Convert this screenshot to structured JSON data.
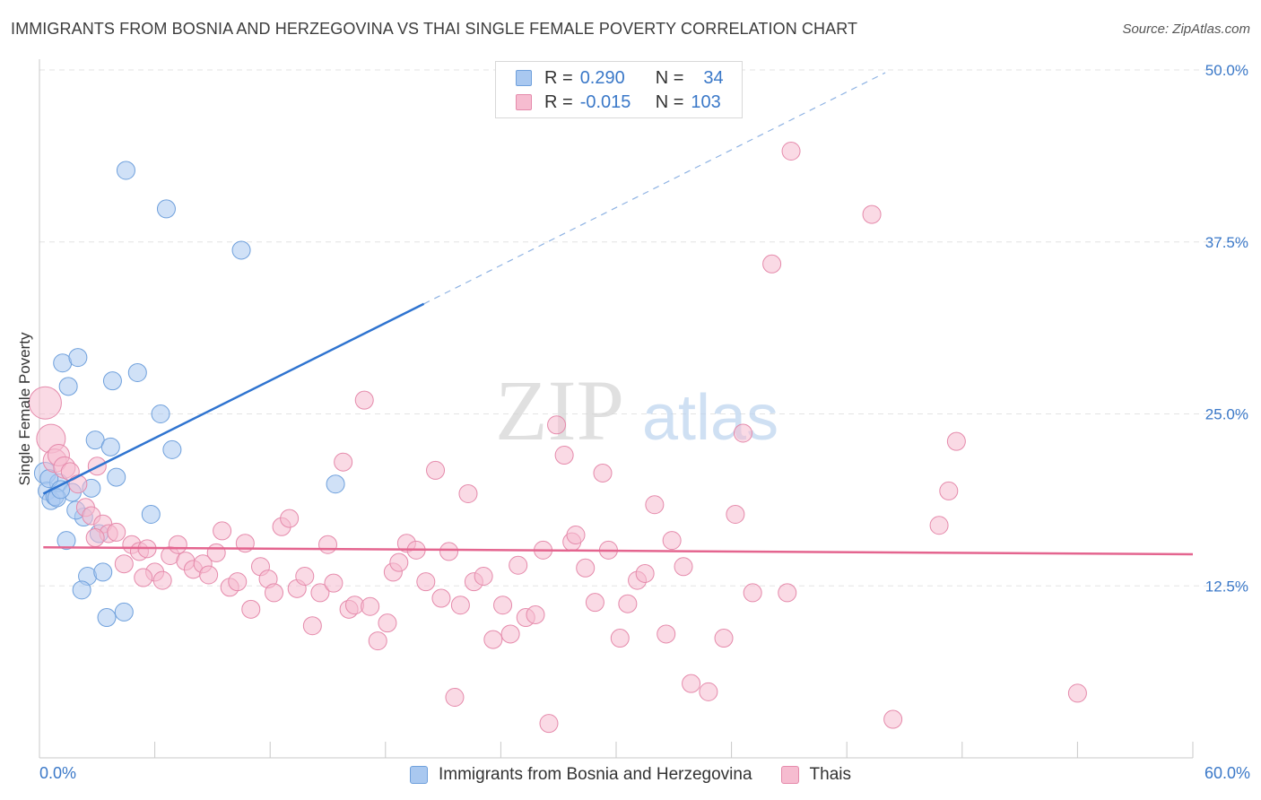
{
  "title": "IMMIGRANTS FROM BOSNIA AND HERZEGOVINA VS THAI SINGLE FEMALE POVERTY CORRELATION CHART",
  "source": "Source: ZipAtlas.com",
  "watermark": {
    "zip": "ZIP",
    "atlas": "atlas"
  },
  "legend_top": {
    "rows": [
      {
        "r_label": "R =",
        "r_value": "0.290",
        "n_label": "N =",
        "n_value": "34",
        "color": "#a9c8f0",
        "border": "#6fa0dc"
      },
      {
        "r_label": "R =",
        "r_value": "-0.015",
        "n_label": "N =",
        "n_value": "103",
        "color": "#f6bcd0",
        "border": "#e58aab"
      }
    ]
  },
  "chart_data": {
    "type": "scatter",
    "xlabel": "",
    "ylabel": "Single Female Poverty",
    "xlim": [
      0,
      60
    ],
    "ylim": [
      0,
      50
    ],
    "x_tick_labels": [
      "0.0%",
      "60.0%"
    ],
    "y_ticks": [
      12.5,
      25.0,
      37.5,
      50.0
    ],
    "y_tick_labels": [
      "12.5%",
      "25.0%",
      "37.5%",
      "50.0%"
    ],
    "grid": true,
    "series": [
      {
        "name": "Immigrants from Bosnia and Herzegovina",
        "color": "#a9c8f0",
        "stroke": "#6fa0dc",
        "line_color": "#2f74d0",
        "trend": {
          "x0": 0.2,
          "y0": 19.2,
          "x1": 20.0,
          "y1": 33.0,
          "dash_to_x": 44.0,
          "dash_to_y": 49.8
        },
        "points": [
          [
            0.3,
            20.7
          ],
          [
            0.4,
            19.4
          ],
          [
            0.6,
            18.7
          ],
          [
            0.8,
            19.0
          ],
          [
            1.0,
            20.0
          ],
          [
            1.2,
            28.7
          ],
          [
            1.5,
            27.0
          ],
          [
            1.7,
            19.3
          ],
          [
            2.0,
            29.1
          ],
          [
            2.3,
            17.5
          ],
          [
            2.5,
            13.2
          ],
          [
            2.7,
            19.6
          ],
          [
            2.9,
            23.1
          ],
          [
            3.1,
            16.3
          ],
          [
            3.3,
            13.5
          ],
          [
            3.5,
            10.2
          ],
          [
            3.7,
            22.6
          ],
          [
            3.8,
            27.4
          ],
          [
            4.0,
            20.4
          ],
          [
            4.4,
            10.6
          ],
          [
            4.5,
            42.7
          ],
          [
            5.1,
            28.0
          ],
          [
            5.8,
            17.7
          ],
          [
            6.3,
            25.0
          ],
          [
            6.6,
            39.9
          ],
          [
            6.9,
            22.4
          ],
          [
            10.5,
            36.9
          ],
          [
            15.4,
            19.9
          ],
          [
            1.4,
            15.8
          ],
          [
            2.2,
            12.2
          ],
          [
            0.9,
            18.9
          ],
          [
            1.9,
            18.0
          ],
          [
            0.5,
            20.3
          ],
          [
            1.1,
            19.5
          ]
        ],
        "sizes": [
          12,
          10,
          10,
          10,
          10,
          10,
          10,
          10,
          10,
          10,
          10,
          10,
          10,
          10,
          10,
          10,
          10,
          10,
          10,
          10,
          10,
          10,
          10,
          10,
          10,
          10,
          10,
          10,
          10,
          10,
          10,
          10,
          10,
          10
        ]
      },
      {
        "name": "Thais",
        "color": "#f6bcd0",
        "stroke": "#e58aab",
        "line_color": "#e4658f",
        "trend": {
          "x0": 0.2,
          "y0": 15.3,
          "x1": 60.0,
          "y1": 14.8
        },
        "points": [
          [
            0.3,
            25.8
          ],
          [
            0.6,
            23.2
          ],
          [
            0.8,
            21.6
          ],
          [
            1.0,
            22.0
          ],
          [
            1.3,
            21.1
          ],
          [
            1.6,
            20.8
          ],
          [
            2.0,
            19.9
          ],
          [
            2.4,
            18.2
          ],
          [
            2.7,
            17.6
          ],
          [
            3.0,
            21.2
          ],
          [
            3.3,
            17.0
          ],
          [
            3.6,
            16.3
          ],
          [
            4.0,
            16.4
          ],
          [
            4.4,
            14.1
          ],
          [
            4.8,
            15.5
          ],
          [
            5.2,
            15.0
          ],
          [
            5.6,
            15.2
          ],
          [
            6.0,
            13.5
          ],
          [
            6.4,
            12.9
          ],
          [
            6.8,
            14.7
          ],
          [
            7.2,
            15.5
          ],
          [
            7.6,
            14.3
          ],
          [
            8.0,
            13.7
          ],
          [
            8.5,
            14.1
          ],
          [
            8.8,
            13.3
          ],
          [
            9.2,
            14.9
          ],
          [
            9.5,
            16.5
          ],
          [
            9.9,
            12.4
          ],
          [
            10.3,
            12.8
          ],
          [
            10.7,
            15.6
          ],
          [
            11.0,
            10.8
          ],
          [
            11.5,
            13.9
          ],
          [
            11.9,
            13.0
          ],
          [
            12.2,
            12.0
          ],
          [
            12.6,
            16.8
          ],
          [
            13.0,
            17.4
          ],
          [
            13.4,
            12.3
          ],
          [
            13.8,
            13.2
          ],
          [
            14.2,
            9.6
          ],
          [
            14.6,
            12.0
          ],
          [
            15.0,
            15.5
          ],
          [
            15.3,
            12.7
          ],
          [
            15.8,
            21.5
          ],
          [
            16.1,
            10.8
          ],
          [
            16.4,
            11.1
          ],
          [
            16.9,
            26.0
          ],
          [
            17.2,
            11.0
          ],
          [
            17.6,
            8.5
          ],
          [
            18.1,
            9.8
          ],
          [
            18.4,
            13.5
          ],
          [
            18.7,
            14.2
          ],
          [
            19.1,
            15.6
          ],
          [
            19.6,
            15.1
          ],
          [
            20.1,
            12.8
          ],
          [
            20.6,
            20.9
          ],
          [
            20.9,
            11.6
          ],
          [
            21.3,
            15.0
          ],
          [
            21.6,
            4.4
          ],
          [
            21.9,
            11.1
          ],
          [
            22.3,
            19.2
          ],
          [
            22.6,
            12.8
          ],
          [
            23.1,
            13.2
          ],
          [
            23.6,
            8.6
          ],
          [
            24.1,
            11.1
          ],
          [
            24.5,
            9.0
          ],
          [
            24.9,
            14.0
          ],
          [
            25.3,
            10.2
          ],
          [
            25.8,
            10.4
          ],
          [
            26.2,
            15.1
          ],
          [
            26.5,
            2.5
          ],
          [
            26.9,
            24.2
          ],
          [
            27.3,
            22.0
          ],
          [
            27.7,
            15.7
          ],
          [
            27.9,
            16.2
          ],
          [
            28.4,
            13.8
          ],
          [
            28.9,
            11.3
          ],
          [
            29.3,
            20.7
          ],
          [
            29.6,
            15.1
          ],
          [
            30.2,
            8.7
          ],
          [
            30.6,
            11.2
          ],
          [
            31.1,
            12.9
          ],
          [
            31.5,
            13.4
          ],
          [
            32.0,
            18.4
          ],
          [
            32.6,
            9.0
          ],
          [
            32.9,
            15.8
          ],
          [
            33.5,
            13.9
          ],
          [
            33.9,
            5.4
          ],
          [
            34.8,
            4.8
          ],
          [
            35.6,
            8.7
          ],
          [
            36.2,
            17.7
          ],
          [
            36.6,
            23.6
          ],
          [
            37.1,
            12.0
          ],
          [
            38.1,
            35.9
          ],
          [
            38.9,
            12.0
          ],
          [
            39.1,
            44.1
          ],
          [
            43.3,
            39.5
          ],
          [
            44.4,
            2.8
          ],
          [
            46.8,
            16.9
          ],
          [
            47.3,
            19.4
          ],
          [
            47.7,
            23.0
          ],
          [
            54.0,
            4.7
          ],
          [
            2.9,
            16.0
          ],
          [
            5.4,
            13.1
          ]
        ],
        "sizes": [
          18,
          16,
          13,
          12,
          12,
          10,
          10,
          10,
          10,
          10,
          10,
          10,
          10,
          10,
          10,
          10,
          10,
          10,
          10,
          10,
          10,
          10,
          10,
          10,
          10,
          10,
          10,
          10,
          10,
          10,
          10,
          10,
          10,
          10,
          10,
          10,
          10,
          10,
          10,
          10,
          10,
          10,
          10,
          10,
          10,
          10,
          10,
          10,
          10,
          10,
          10,
          10,
          10,
          10,
          10,
          10,
          10,
          10,
          10,
          10,
          10,
          10,
          10,
          10,
          10,
          10,
          10,
          10,
          10,
          10,
          10,
          10,
          10,
          10,
          10,
          10,
          10,
          10,
          10,
          10,
          10,
          10,
          10,
          10,
          10,
          10,
          10,
          10,
          10,
          10,
          10,
          10,
          10,
          10,
          10,
          10,
          10,
          10,
          10,
          10,
          10,
          10,
          10
        ]
      }
    ]
  }
}
